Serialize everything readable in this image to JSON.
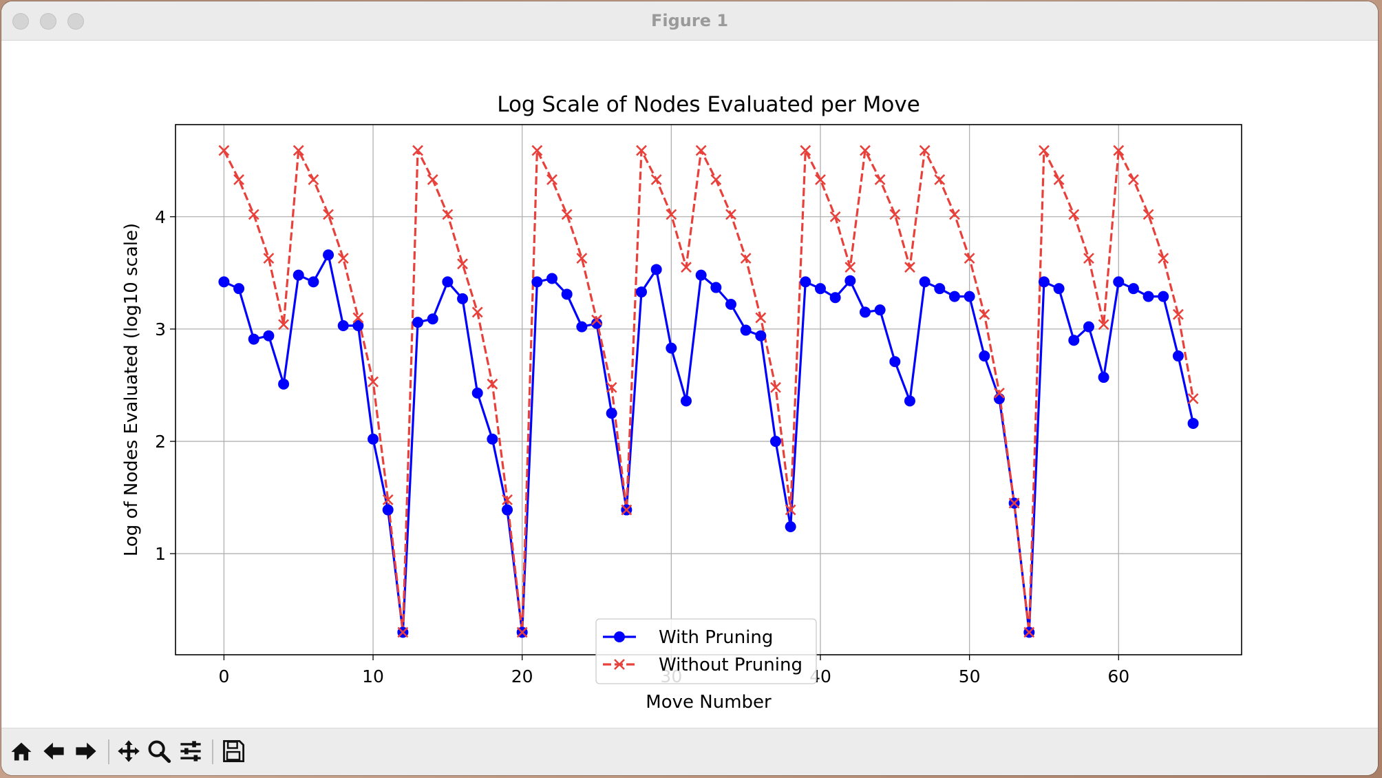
{
  "window": {
    "title": "Figure 1"
  },
  "toolbar": {
    "buttons": [
      "home-icon",
      "back-arrow-icon",
      "forward-arrow-icon",
      "pan-icon",
      "zoom-icon",
      "configure-subplots-icon",
      "save-icon"
    ]
  },
  "chart_data": {
    "type": "line",
    "title": "Log Scale of Nodes Evaluated per Move",
    "xlabel": "Move Number",
    "ylabel": "Log of Nodes Evaluated (log10 scale)",
    "xlim": [
      -3.25,
      68.25
    ],
    "ylim": [
      0.1,
      4.82
    ],
    "xticks": [
      0,
      10,
      20,
      30,
      40,
      50,
      60
    ],
    "yticks": [
      1,
      2,
      3,
      4
    ],
    "grid": true,
    "legend_position": "lower center",
    "series": [
      {
        "name": "With Pruning",
        "color": "#0000ff",
        "line_style": "solid",
        "marker": "circle",
        "x": [
          0,
          1,
          2,
          3,
          4,
          5,
          6,
          7,
          8,
          9,
          10,
          11,
          12,
          13,
          14,
          15,
          16,
          17,
          18,
          19,
          20,
          21,
          22,
          23,
          24,
          25,
          26,
          27,
          28,
          29,
          30,
          31,
          32,
          33,
          34,
          35,
          36,
          37,
          38,
          39,
          40,
          41,
          42,
          43,
          44,
          45,
          46,
          47,
          48,
          49,
          50,
          51,
          52,
          53,
          54,
          55,
          56,
          57,
          58,
          59,
          60,
          61,
          62,
          63,
          64,
          65
        ],
        "y": [
          3.42,
          3.36,
          2.91,
          2.94,
          2.51,
          3.48,
          3.42,
          3.66,
          3.03,
          3.03,
          2.02,
          1.39,
          0.3,
          3.06,
          3.09,
          3.42,
          3.27,
          2.43,
          2.02,
          1.39,
          0.3,
          3.42,
          3.45,
          3.31,
          3.02,
          3.05,
          2.25,
          1.39,
          3.33,
          3.53,
          2.83,
          2.36,
          3.48,
          3.37,
          3.22,
          2.99,
          2.94,
          2.0,
          1.24,
          3.42,
          3.36,
          3.28,
          3.43,
          3.15,
          3.17,
          2.71,
          2.36,
          3.42,
          3.36,
          3.29,
          3.29,
          2.76,
          2.38,
          1.45,
          0.3,
          3.42,
          3.36,
          2.9,
          3.02,
          2.57,
          3.42,
          3.36,
          3.29,
          3.29,
          2.76,
          2.16
        ]
      },
      {
        "name": "Without Pruning",
        "color": "#e8413b",
        "line_style": "dashed",
        "marker": "x",
        "x": [
          0,
          1,
          2,
          3,
          4,
          5,
          6,
          7,
          8,
          9,
          10,
          11,
          12,
          13,
          14,
          15,
          16,
          17,
          18,
          19,
          20,
          21,
          22,
          23,
          24,
          25,
          26,
          27,
          28,
          29,
          30,
          31,
          32,
          33,
          34,
          35,
          36,
          37,
          38,
          39,
          40,
          41,
          42,
          43,
          44,
          45,
          46,
          47,
          48,
          49,
          50,
          51,
          52,
          53,
          54,
          55,
          56,
          57,
          58,
          59,
          60,
          61,
          62,
          63,
          64,
          65
        ],
        "y": [
          4.59,
          4.33,
          4.02,
          3.63,
          3.04,
          4.59,
          4.33,
          4.02,
          3.63,
          3.1,
          2.53,
          1.48,
          0.3,
          4.59,
          4.33,
          4.02,
          3.58,
          3.15,
          2.51,
          1.48,
          0.3,
          4.59,
          4.33,
          4.02,
          3.63,
          3.08,
          2.48,
          1.39,
          4.59,
          4.33,
          4.02,
          3.55,
          4.59,
          4.33,
          4.02,
          3.63,
          3.1,
          2.48,
          1.39,
          4.59,
          4.33,
          4.0,
          3.55,
          4.59,
          4.33,
          4.02,
          3.55,
          4.59,
          4.33,
          4.02,
          3.63,
          3.13,
          2.43,
          1.45,
          0.3,
          4.59,
          4.33,
          4.02,
          3.63,
          3.04,
          4.59,
          4.33,
          4.02,
          3.63,
          3.13,
          2.38
        ]
      }
    ]
  }
}
